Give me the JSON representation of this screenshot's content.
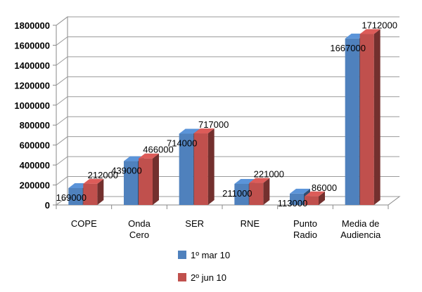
{
  "chart_data": {
    "type": "bar",
    "categories": [
      [
        "COPE"
      ],
      [
        "Onda",
        "Cero"
      ],
      [
        "SER"
      ],
      [
        "RNE"
      ],
      [
        "Punto",
        "Radio"
      ],
      [
        "Media de",
        "Audiencia"
      ]
    ],
    "series": [
      {
        "name": "1º mar 10",
        "values": [
          169000,
          439000,
          714000,
          211000,
          113000,
          1667000
        ],
        "color": "#4f81bd"
      },
      {
        "name": "2º jun 10",
        "values": [
          212000,
          466000,
          717000,
          221000,
          86000,
          1712000
        ],
        "color": "#c0504d"
      }
    ],
    "ylim": [
      0,
      1800000
    ],
    "yticks": [
      "0",
      "200000",
      "400000",
      "600000",
      "800000",
      "1000000",
      "1200000",
      "1400000",
      "1600000",
      "1800000"
    ],
    "grid": true,
    "legend": "bottom",
    "style": "3d-clustered-column"
  }
}
